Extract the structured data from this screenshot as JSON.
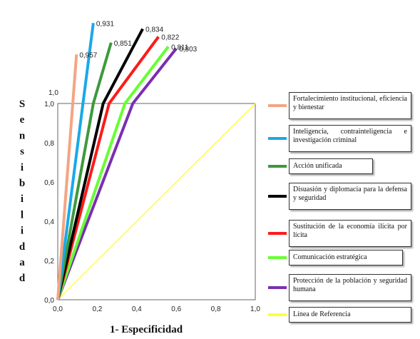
{
  "chart_data": {
    "type": "line",
    "xlabel": "1- Especificidad",
    "ylabel": "Sensibilidad",
    "xlim": [
      0,
      1
    ],
    "ylim": [
      0,
      1
    ],
    "x_ticks": [
      "0,0",
      "0,2",
      "0,4",
      "0,6",
      "0,8",
      "1,0"
    ],
    "y_ticks": [
      "0,0",
      "0,2",
      "0,4",
      "0,6",
      "0,8",
      "1,0"
    ],
    "y_extra_label": "1,0",
    "grid": false,
    "legend_position": "right",
    "series": [
      {
        "name": "Fortalecimiento institucional, eficiencia y bienestar",
        "color": "#F4A582",
        "auc_label": "0,957",
        "points": [
          [
            0,
            0
          ],
          [
            0.095,
            1.25
          ]
        ]
      },
      {
        "name": "Inteligencia, contrainteligencia e investigación criminal",
        "color": "#1BA8E8",
        "auc_label": "0,931",
        "points": [
          [
            0,
            0
          ],
          [
            0.18,
            1.41
          ]
        ]
      },
      {
        "name": "Acción unificada",
        "color": "#3C9A3C",
        "auc_label": "0,851",
        "points": [
          [
            0,
            0
          ],
          [
            0.18,
            1.0
          ],
          [
            0.27,
            1.31
          ]
        ]
      },
      {
        "name": "Disuasión y diplomacia para la defensa y seguridad",
        "color": "#000000",
        "auc_label": "0,834",
        "points": [
          [
            0,
            0
          ],
          [
            0.23,
            1.0
          ],
          [
            0.43,
            1.38
          ]
        ]
      },
      {
        "name": "Sustitución de la economía ilícita por lícita",
        "color": "#FF1A1A",
        "auc_label": "0,822",
        "points": [
          [
            0,
            0
          ],
          [
            0.26,
            1.0
          ],
          [
            0.51,
            1.34
          ]
        ]
      },
      {
        "name": "Comunicación estratégica",
        "color": "#66FF33",
        "auc_label": "0,811",
        "points": [
          [
            0,
            0
          ],
          [
            0.34,
            1.0
          ],
          [
            0.56,
            1.29
          ]
        ]
      },
      {
        "name": "Protección de la población y seguridad humana",
        "color": "#7B2FB0",
        "auc_label": "0,803",
        "points": [
          [
            0,
            0
          ],
          [
            0.38,
            1.0
          ],
          [
            0.6,
            1.28
          ]
        ]
      },
      {
        "name": "Línea de Referencia",
        "color": "#FFFF40",
        "points": [
          [
            0,
            0
          ],
          [
            1,
            1
          ]
        ]
      }
    ]
  }
}
